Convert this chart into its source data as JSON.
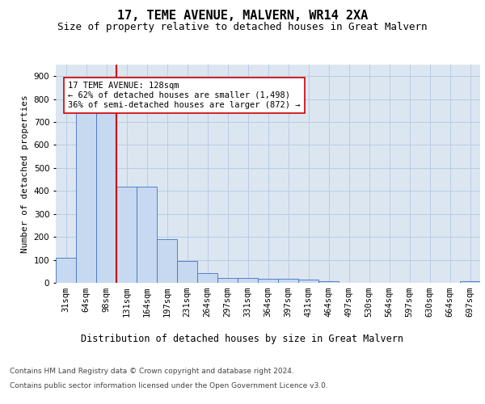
{
  "title": "17, TEME AVENUE, MALVERN, WR14 2XA",
  "subtitle": "Size of property relative to detached houses in Great Malvern",
  "xlabel": "Distribution of detached houses by size in Great Malvern",
  "ylabel": "Number of detached properties",
  "footer_line1": "Contains HM Land Registry data © Crown copyright and database right 2024.",
  "footer_line2": "Contains public sector information licensed under the Open Government Licence v3.0.",
  "bar_labels": [
    "31sqm",
    "64sqm",
    "98sqm",
    "131sqm",
    "164sqm",
    "197sqm",
    "231sqm",
    "264sqm",
    "297sqm",
    "331sqm",
    "364sqm",
    "397sqm",
    "431sqm",
    "464sqm",
    "497sqm",
    "530sqm",
    "564sqm",
    "597sqm",
    "630sqm",
    "664sqm",
    "697sqm"
  ],
  "bar_values": [
    110,
    750,
    750,
    420,
    420,
    190,
    95,
    42,
    20,
    20,
    18,
    18,
    15,
    8,
    0,
    0,
    0,
    0,
    0,
    0,
    8
  ],
  "bar_color": "#c6d9f0",
  "bar_edge_color": "#4472c4",
  "grid_color": "#b8cce4",
  "background_color": "#dce6f1",
  "marker_color": "#cc0000",
  "annotation_box_color": "#ffffff",
  "annotation_box_edge_color": "#cc0000",
  "marker_label": "17 TEME AVENUE: 128sqm",
  "marker_pct_smaller": "62% of detached houses are smaller (1,498)",
  "marker_pct_larger": "36% of semi-detached houses are larger (872)",
  "ylim": [
    0,
    950
  ],
  "yticks": [
    0,
    100,
    200,
    300,
    400,
    500,
    600,
    700,
    800,
    900
  ],
  "title_fontsize": 11,
  "subtitle_fontsize": 9,
  "xlabel_fontsize": 8.5,
  "ylabel_fontsize": 8,
  "tick_fontsize": 7.5,
  "footer_fontsize": 6.5,
  "ann_fontsize": 7.5
}
